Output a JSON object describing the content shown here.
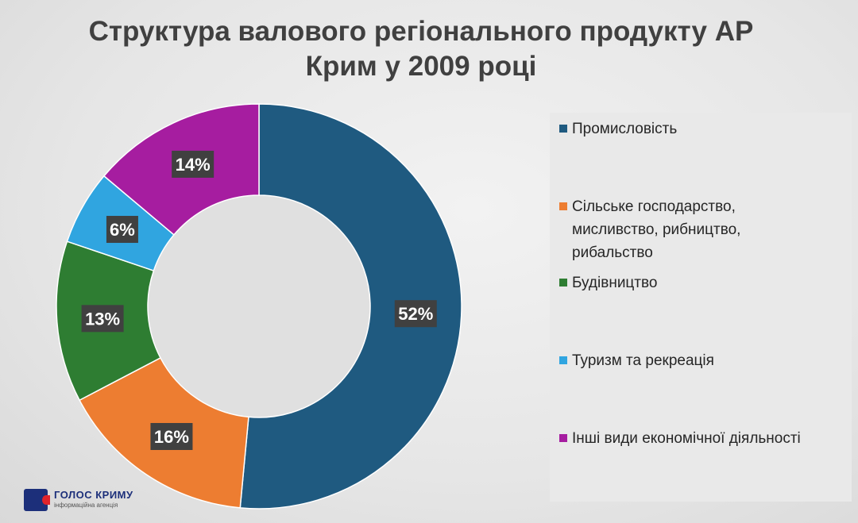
{
  "chart_data": {
    "type": "pie",
    "title": [
      "Структура валового регіонального продукту АР",
      "Крим у 2009 році"
    ],
    "categories": [
      "Промисловість",
      "Сільське господарство, мисливство, рибництво, рибальство",
      "Будівництво",
      "Туризм та рекреація",
      "Інші види економічної діяльності"
    ],
    "legend_lines": [
      [
        "Промисловість"
      ],
      [
        "Сільське господарство,",
        "мисливство, рибництво,",
        "рибальство"
      ],
      [
        "Будівництво"
      ],
      [
        "Туризм та рекреація"
      ],
      [
        "Інші види економічної діяльності"
      ]
    ],
    "values": [
      52,
      16,
      13,
      6,
      14
    ],
    "data_labels": [
      "52%",
      "16%",
      "13%",
      "6%",
      "14%"
    ],
    "colors": [
      "#1f5a80",
      "#ed7d31",
      "#2e7d32",
      "#30a5e0",
      "#a61da0"
    ],
    "donut": true,
    "legend_position": "right"
  },
  "logo": {
    "name": "ГОЛОС КРИМУ",
    "subtitle": "інформаційна агенція"
  }
}
